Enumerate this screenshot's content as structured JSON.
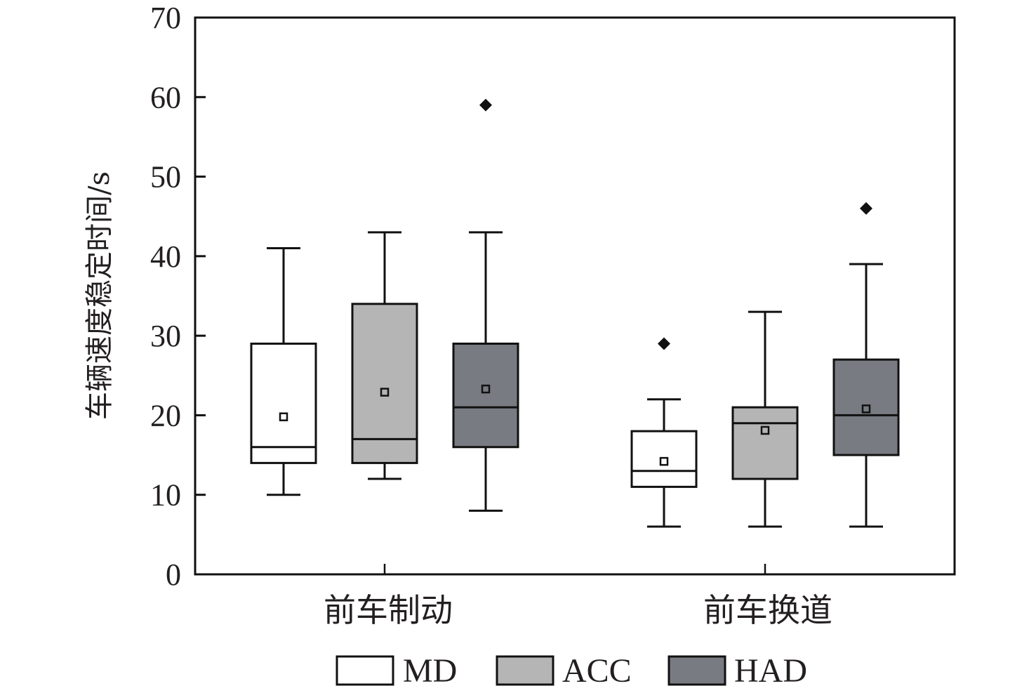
{
  "chart_data": {
    "type": "boxplot",
    "title": "",
    "xlabel": "",
    "ylabel": "车辆速度稳定时间/s",
    "ylim": [
      0,
      70
    ],
    "yticks": [
      0,
      10,
      20,
      30,
      40,
      50,
      60,
      70
    ],
    "ytick_labels": [
      "0",
      "10",
      "20",
      "30",
      "40",
      "50",
      "60",
      "70"
    ],
    "grid": false,
    "categories": [
      "前车制动",
      "前车换道"
    ],
    "legend": {
      "placement": "bottom",
      "entries": [
        "MD",
        "ACC",
        "HAD"
      ]
    },
    "series": [
      {
        "name": "MD",
        "color": "#ffffff",
        "boxes": [
          {
            "min": 10,
            "q1": 14,
            "median": 16,
            "q3": 29,
            "max": 41,
            "mean": 19.8,
            "outliers": []
          },
          {
            "min": 6,
            "q1": 11,
            "median": 13,
            "q3": 18,
            "max": 22,
            "mean": 14.2,
            "outliers": [
              29
            ]
          }
        ]
      },
      {
        "name": "ACC",
        "color": "#b5b5b5",
        "boxes": [
          {
            "min": 12,
            "q1": 14,
            "median": 17,
            "q3": 34,
            "max": 43,
            "mean": 22.9,
            "outliers": []
          },
          {
            "min": 6,
            "q1": 12,
            "median": 19,
            "q3": 21,
            "max": 33,
            "mean": 18.1,
            "outliers": []
          }
        ]
      },
      {
        "name": "HAD",
        "color": "#797b82",
        "boxes": [
          {
            "min": 8,
            "q1": 16,
            "median": 21,
            "q3": 29,
            "max": 43,
            "mean": 23.3,
            "outliers": [
              59
            ]
          },
          {
            "min": 6,
            "q1": 15,
            "median": 20,
            "q3": 27,
            "max": 39,
            "mean": 20.8,
            "outliers": [
              46
            ]
          }
        ]
      }
    ]
  },
  "colors": {
    "stroke": "#111111",
    "text": "#231f20"
  }
}
